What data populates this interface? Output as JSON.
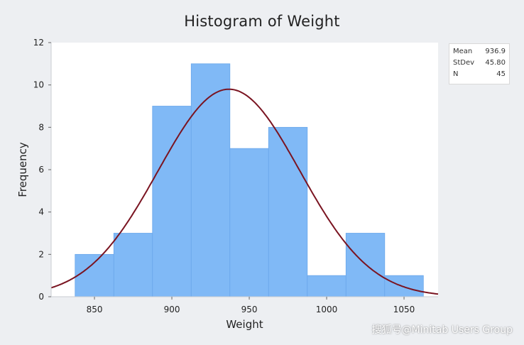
{
  "title": "Histogram of Weight",
  "stats": [
    {
      "label": "Mean",
      "value": "936.9"
    },
    {
      "label": "StDev",
      "value": "45.80"
    },
    {
      "label": "N",
      "value": "45"
    }
  ],
  "watermark": "搜狐号@Minitab Users Group",
  "colors": {
    "bar": "#80b9f6",
    "bar_edge": "#6aa7ea",
    "curve": "#7a1421",
    "plot_bg": "#ffffff"
  },
  "chart_data": {
    "type": "bar",
    "title": "Histogram of Weight",
    "xlabel": "Weight",
    "ylabel": "Frequency",
    "bins": [
      {
        "start": 837.5,
        "end": 862.5,
        "count": 2
      },
      {
        "start": 862.5,
        "end": 887.5,
        "count": 3
      },
      {
        "start": 887.5,
        "end": 912.5,
        "count": 9
      },
      {
        "start": 912.5,
        "end": 937.5,
        "count": 11
      },
      {
        "start": 937.5,
        "end": 962.5,
        "count": 7
      },
      {
        "start": 962.5,
        "end": 987.5,
        "count": 8
      },
      {
        "start": 987.5,
        "end": 1012.5,
        "count": 1
      },
      {
        "start": 1012.5,
        "end": 1037.5,
        "count": 3
      },
      {
        "start": 1037.5,
        "end": 1062.5,
        "count": 1
      }
    ],
    "xticks": [
      850,
      900,
      950,
      1000,
      1050
    ],
    "yticks": [
      0,
      2,
      4,
      6,
      8,
      10,
      12
    ],
    "xlim": [
      822,
      1072
    ],
    "ylim": [
      0,
      12
    ],
    "normal_fit": {
      "mean": 936.9,
      "stdev": 45.8,
      "n": 45,
      "bin_width": 25
    },
    "grid": false
  }
}
